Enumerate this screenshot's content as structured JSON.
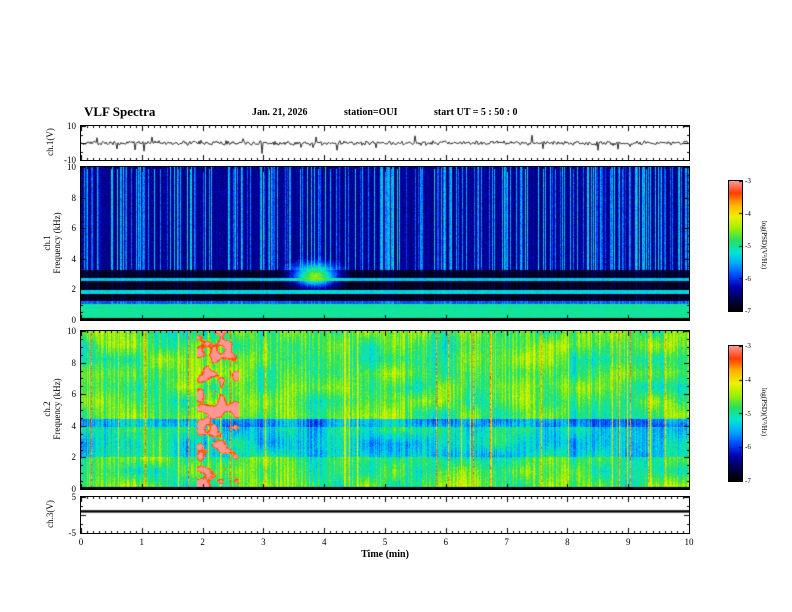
{
  "header": {
    "title": "VLF Spectra",
    "date": "Jan. 21, 2026",
    "station": "station=OUI",
    "start_ut": "start UT =  5 : 50 : 0"
  },
  "xaxis": {
    "label": "Time (min)",
    "tick_labels": [
      "0",
      "1",
      "2",
      "3",
      "4",
      "5",
      "6",
      "7",
      "8",
      "9",
      "10"
    ],
    "range_min": [
      0,
      10
    ]
  },
  "colorbar": {
    "label": "log(PSD)(V²/Hz)",
    "ticks": [
      "-3",
      "-4",
      "-5",
      "-6",
      "-7"
    ],
    "range_log_psd": [
      -7,
      -3
    ],
    "colormap_stops": [
      "#000000",
      "#00004a",
      "#0000b0",
      "#0048ff",
      "#00a8ff",
      "#00e8d0",
      "#28e060",
      "#a0f000",
      "#f0f000",
      "#ffb400",
      "#ff3c00",
      "#ff9696"
    ]
  },
  "colors": {
    "trace": "#000000",
    "frame": "#000000",
    "background": "#ffffff"
  },
  "chart_data": [
    {
      "id": "ch1_voltage",
      "type": "line",
      "ylabel": "ch.1(V)",
      "ylim": [
        -10,
        10
      ],
      "ytick_labels": [
        "10",
        "-10"
      ],
      "xlim": [
        0,
        10
      ],
      "signal": {
        "mean_v": 0,
        "noise_amp_v": 1.5,
        "spike_amp_v": 5,
        "spike_prob": 0.04,
        "seed": 11
      }
    },
    {
      "id": "ch1_spectrogram",
      "type": "heatmap",
      "ylabel_lines": [
        "ch.1",
        "Frequency (kHz)"
      ],
      "ylim": [
        0,
        10
      ],
      "ytick_labels": [
        "0",
        "2",
        "4",
        "6",
        "8",
        "10"
      ],
      "xlim": [
        0,
        10
      ],
      "value_is": "log PSD (V^2/Hz), range -7 to -3",
      "base_level": -6.45,
      "features": {
        "vertical_streaks": {
          "density": 0.3,
          "level": -5.1,
          "seed": 21
        },
        "bands": [
          {
            "f_khz": [
              0,
              0.12
            ],
            "level": -7.0,
            "streak_damp": 0
          },
          {
            "f_khz": [
              0.12,
              1.05
            ],
            "level": -5.0,
            "streak_damp": 0.3
          },
          {
            "f_khz": [
              1.05,
              1.25
            ],
            "level": -5.9,
            "streak_damp": 0.5
          },
          {
            "f_khz": [
              1.25,
              1.7
            ],
            "level": -6.9,
            "streak_damp": 0.2
          },
          {
            "f_khz": [
              1.7,
              1.95
            ],
            "level": -5.3,
            "streak_damp": 0.3
          },
          {
            "f_khz": [
              1.95,
              2.55
            ],
            "level": -6.9,
            "streak_damp": 0.2
          },
          {
            "f_khz": [
              2.55,
              2.75
            ],
            "level": -5.4,
            "streak_damp": 0.3
          },
          {
            "f_khz": [
              2.75,
              3.25
            ],
            "level": -6.85,
            "streak_damp": 0.2
          }
        ],
        "blob": {
          "t_min": [
            3.5,
            4.2
          ],
          "f_khz": [
            2.2,
            3.6
          ],
          "level": -4.5
        }
      }
    },
    {
      "id": "ch2_spectrogram",
      "type": "heatmap",
      "ylabel_lines": [
        "ch.2",
        "Frequency (kHz)"
      ],
      "ylim": [
        0,
        10
      ],
      "ytick_labels": [
        "0",
        "2",
        "4",
        "6",
        "8",
        "10"
      ],
      "xlim": [
        0,
        10
      ],
      "value_is": "log PSD (V^2/Hz), range -7 to -3",
      "base_level": -4.75,
      "features": {
        "vertical_streaks": {
          "density": 0.045,
          "level": -3.3,
          "seed": 31
        },
        "burst": {
          "t_min": [
            1.9,
            2.6
          ],
          "level": -3.1
        },
        "bands": [
          {
            "f_khz": [
              0,
              0.12
            ],
            "level": -7.0
          },
          {
            "f_khz": [
              2.0,
              3.9
            ],
            "level": -5.15
          },
          {
            "f_khz": [
              3.9,
              4.4
            ],
            "level": -5.55
          }
        ]
      }
    },
    {
      "id": "ch3_voltage",
      "type": "line",
      "ylabel": "ch.3(V)",
      "ylim": [
        -5,
        5
      ],
      "ytick_labels": [
        "5",
        "-5"
      ],
      "xlim": [
        0,
        10
      ],
      "value_v": 1
    }
  ]
}
